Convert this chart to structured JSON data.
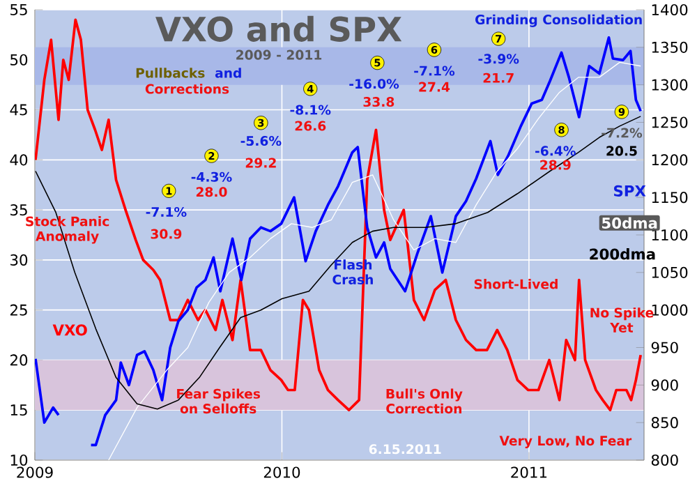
{
  "chart_data": {
    "type": "line",
    "title": "VXO and SPX",
    "subtitle": "2009 - 2011",
    "xlim": [
      "2009-01-01",
      "2011-06-20"
    ],
    "xticks": [
      {
        "value": "2009",
        "label": "2009"
      },
      {
        "value": "2010",
        "label": "2010"
      },
      {
        "value": "2011",
        "label": "2011"
      }
    ],
    "ylim": [
      10,
      55
    ],
    "yticks": [
      10,
      15,
      20,
      25,
      30,
      35,
      40,
      45,
      50,
      55
    ],
    "y2lim": [
      800,
      1400
    ],
    "y2ticks": [
      800,
      850,
      900,
      950,
      1000,
      1050,
      1100,
      1150,
      1200,
      1250,
      1300,
      1350,
      1400
    ],
    "grid": true,
    "bands": [
      {
        "axis": "y",
        "from": 15,
        "to": 20,
        "color": "#d8c4dc"
      },
      {
        "axis": "y2",
        "from": 1300,
        "to": 1350,
        "color": "#a8b8e8"
      }
    ],
    "series": [
      {
        "name": "VXO",
        "color": "#ff0000",
        "x": [
          "2009-01-02",
          "2009-01-15",
          "2009-01-25",
          "2009-02-05",
          "2009-02-12",
          "2009-02-20",
          "2009-03-02",
          "2009-03-10",
          "2009-03-20",
          "2009-03-31",
          "2009-04-10",
          "2009-04-20",
          "2009-05-01",
          "2009-05-15",
          "2009-05-30",
          "2009-06-10",
          "2009-06-25",
          "2009-07-05",
          "2009-07-20",
          "2009-08-01",
          "2009-08-15",
          "2009-08-30",
          "2009-09-10",
          "2009-09-25",
          "2009-10-05",
          "2009-10-20",
          "2009-11-01",
          "2009-11-15",
          "2009-12-01",
          "2009-12-15",
          "2009-12-31",
          "2010-01-10",
          "2010-01-20",
          "2010-02-01",
          "2010-02-10",
          "2010-02-25",
          "2010-03-10",
          "2010-03-25",
          "2010-04-10",
          "2010-04-25",
          "2010-05-07",
          "2010-05-20",
          "2010-06-01",
          "2010-06-10",
          "2010-06-30",
          "2010-07-15",
          "2010-07-30",
          "2010-08-15",
          "2010-08-31",
          "2010-09-15",
          "2010-09-30",
          "2010-10-15",
          "2010-10-31",
          "2010-11-15",
          "2010-11-30",
          "2010-12-15",
          "2010-12-31",
          "2011-01-15",
          "2011-01-31",
          "2011-02-15",
          "2011-02-25",
          "2011-03-10",
          "2011-03-16",
          "2011-03-25",
          "2011-04-10",
          "2011-04-20",
          "2011-05-01",
          "2011-05-10",
          "2011-05-25",
          "2011-06-01",
          "2011-06-08",
          "2011-06-15"
        ],
        "values": [
          40,
          48,
          52,
          44,
          50,
          48,
          54,
          52,
          45,
          43,
          41,
          44,
          38,
          35,
          32,
          30,
          29,
          28,
          24,
          24,
          26,
          24,
          25,
          23,
          26,
          22,
          28,
          21,
          21,
          19,
          18,
          17,
          17,
          26,
          25,
          19,
          17,
          16,
          15,
          16,
          38,
          43,
          35,
          32,
          35,
          26,
          24,
          27,
          28,
          24,
          22,
          21,
          21,
          23,
          21,
          18,
          17,
          17,
          20,
          16,
          22,
          20,
          28,
          20,
          17,
          16,
          15,
          17,
          17,
          16,
          18,
          20.5
        ]
      },
      {
        "name": "SPX",
        "color": "#0000ff",
        "axis": "y2",
        "x": [
          "2009-01-02",
          "2009-01-15",
          "2009-01-28",
          "2009-02-05",
          "2009-02-20",
          "2009-03-05",
          "2009-03-25",
          "2009-04-01",
          "2009-04-15",
          "2009-05-01",
          "2009-05-08",
          "2009-05-20",
          "2009-06-01",
          "2009-06-12",
          "2009-06-25",
          "2009-07-08",
          "2009-07-20",
          "2009-08-01",
          "2009-08-15",
          "2009-08-28",
          "2009-09-10",
          "2009-09-22",
          "2009-10-02",
          "2009-10-20",
          "2009-11-02",
          "2009-11-15",
          "2009-12-01",
          "2009-12-15",
          "2009-12-31",
          "2010-01-19",
          "2010-02-05",
          "2010-02-20",
          "2010-03-10",
          "2010-03-25",
          "2010-04-15",
          "2010-04-23",
          "2010-05-07",
          "2010-05-20",
          "2010-06-01",
          "2010-06-10",
          "2010-07-02",
          "2010-07-20",
          "2010-08-09",
          "2010-08-26",
          "2010-09-15",
          "2010-09-30",
          "2010-10-15",
          "2010-11-05",
          "2010-11-16",
          "2010-12-01",
          "2010-12-20",
          "2011-01-05",
          "2011-01-20",
          "2011-02-01",
          "2011-02-18",
          "2011-03-01",
          "2011-03-16",
          "2011-03-31",
          "2011-04-15",
          "2011-04-29",
          "2011-05-05",
          "2011-05-20",
          "2011-05-31",
          "2011-06-08",
          "2011-06-15"
        ],
        "values": [
          935,
          850,
          870,
          860,
          null,
          null,
          820,
          820,
          860,
          880,
          930,
          900,
          940,
          945,
          920,
          880,
          950,
          985,
          1000,
          1030,
          1040,
          1070,
          1025,
          1095,
          1040,
          1095,
          1110,
          1105,
          1115,
          1150,
          1065,
          1105,
          1140,
          1165,
          1210,
          1217,
          1110,
          1070,
          1090,
          1055,
          1025,
          1075,
          1125,
          1050,
          1125,
          1145,
          1175,
          1225,
          1180,
          1205,
          1245,
          1275,
          1280,
          1305,
          1343,
          1310,
          1257,
          1325,
          1315,
          1363,
          1335,
          1333,
          1345,
          1280,
          1265
        ]
      },
      {
        "name": "50dma",
        "color": "#ffffff",
        "axis": "y2",
        "x": [
          "2009-04-20",
          "2009-06-01",
          "2009-07-15",
          "2009-08-15",
          "2009-09-15",
          "2009-10-15",
          "2009-11-15",
          "2009-12-15",
          "2010-01-15",
          "2010-02-15",
          "2010-03-15",
          "2010-04-15",
          "2010-05-15",
          "2010-06-15",
          "2010-07-15",
          "2010-08-15",
          "2010-09-15",
          "2010-10-15",
          "2010-11-15",
          "2010-12-15",
          "2011-01-15",
          "2011-02-15",
          "2011-03-15",
          "2011-04-15",
          "2011-05-15",
          "2011-06-15"
        ],
        "values": [
          800,
          870,
          920,
          950,
          1010,
          1050,
          1070,
          1095,
          1115,
          1110,
          1120,
          1170,
          1180,
          1120,
          1080,
          1095,
          1090,
          1140,
          1185,
          1215,
          1255,
          1290,
          1310,
          1310,
          1330,
          1325
        ]
      },
      {
        "name": "200dma",
        "color": "#000000",
        "axis": "y2",
        "x": [
          "2009-01-02",
          "2009-02-01",
          "2009-03-01",
          "2009-04-01",
          "2009-05-01",
          "2009-06-01",
          "2009-07-01",
          "2009-08-01",
          "2009-09-01",
          "2009-10-01",
          "2009-11-01",
          "2009-12-01",
          "2010-01-01",
          "2010-02-10",
          "2010-03-15",
          "2010-04-15",
          "2010-05-15",
          "2010-06-15",
          "2010-08-01",
          "2010-09-15",
          "2010-11-01",
          "2010-12-15",
          "2011-02-01",
          "2011-03-15",
          "2011-04-15",
          "2011-05-15",
          "2011-06-15"
        ],
        "values": [
          1185,
          1130,
          1050,
          975,
          910,
          875,
          868,
          880,
          910,
          950,
          990,
          1000,
          1015,
          1025,
          1060,
          1090,
          1105,
          1110,
          1110,
          1115,
          1130,
          1155,
          1185,
          1210,
          1230,
          1245,
          1258
        ]
      }
    ],
    "annotations": [
      "Pullbacks",
      "and",
      "Corrections",
      "Stock Panic Anomaly",
      "Fear Spikes on Selloffs",
      "Flash Crash",
      "Bull's Only Correction",
      "Short-Lived",
      "No Spike Yet",
      "Very Low, No Fear",
      "Grinding Consolidation",
      "6.15.2011",
      "1",
      "-7.1%",
      "30.9",
      "2",
      "-4.3%",
      "28.0",
      "3",
      "-5.6%",
      "29.2",
      "4",
      "-8.1%",
      "26.6",
      "5",
      "-16.0%",
      "33.8",
      "6",
      "-7.1%",
      "27.4",
      "7",
      "-3.9%",
      "21.7",
      "8",
      "-6.4%",
      "28.9",
      "9",
      "-7.2%",
      "20.5"
    ]
  }
}
